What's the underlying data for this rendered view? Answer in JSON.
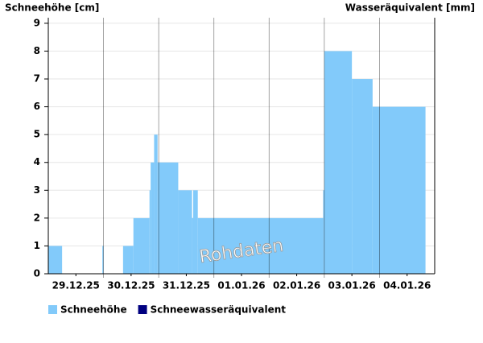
{
  "chart_data": {
    "type": "step",
    "y_label": "Schneehöhe [cm]",
    "y2_label": "Wasseräquivalent [mm]",
    "watermark": "Rohdaten",
    "series": [
      {
        "name": "Schneehöhe",
        "color": "#82cafa",
        "x": [
          0,
          6,
          23.5,
          24,
          32.5,
          37,
          44,
          44.5,
          46,
          47.5,
          56.5,
          62.5,
          63,
          65,
          119.5,
          120,
          132,
          141,
          164
        ],
        "values": [
          1,
          0,
          1,
          0,
          1,
          2,
          3,
          4,
          5,
          4,
          3,
          2,
          3,
          2,
          3,
          8,
          7,
          6,
          0
        ]
      },
      {
        "name": "Schneewasseräquivalent",
        "color": "#000080"
      }
    ],
    "xlim": [
      0,
      168
    ],
    "xticks": [
      {
        "value": 12,
        "label": "29.12.25"
      },
      {
        "value": 36,
        "label": "30.12.25"
      },
      {
        "value": 60,
        "label": "31.12.25"
      },
      {
        "value": 84,
        "label": "01.01.26"
      },
      {
        "value": 108,
        "label": "02.01.26"
      },
      {
        "value": 132,
        "label": "03.01.26"
      },
      {
        "value": 156,
        "label": "04.01.26"
      }
    ],
    "day_lines": [
      24,
      48,
      72,
      96,
      120,
      144
    ],
    "ylim": [
      0,
      9.2
    ],
    "yticks": [
      0,
      1,
      2,
      3,
      4,
      5,
      6,
      7,
      8,
      9
    ],
    "grid": true
  }
}
